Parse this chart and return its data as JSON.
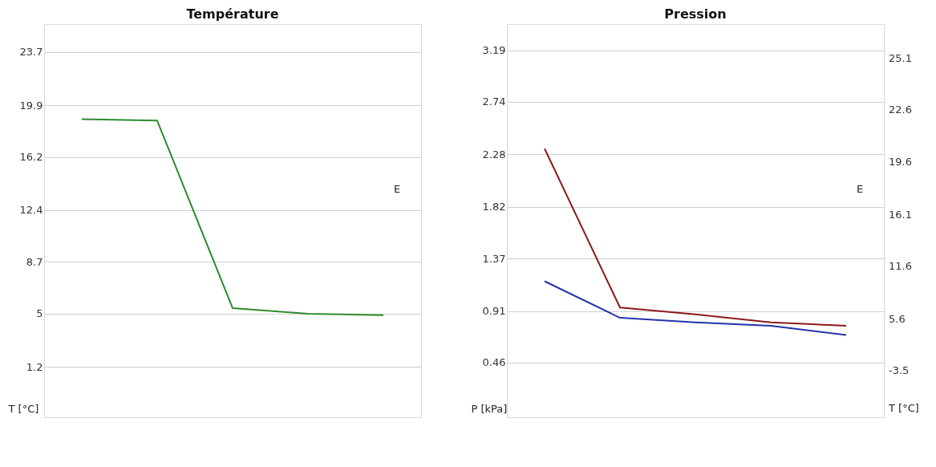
{
  "chart_data": [
    {
      "type": "line",
      "title": "Température",
      "ylabel": "T [°C]",
      "categories": [
        null,
        null,
        null,
        null,
        null
      ],
      "ylim": [
        -2.4,
        25.7
      ],
      "yticks": [
        1.2,
        5,
        8.7,
        12.4,
        16.2,
        19.9,
        23.7
      ],
      "grid": "y",
      "tick_labels": "y",
      "marker": "none",
      "annotations": [
        "E"
      ],
      "series": [
        {
          "color": "#2e8b2e",
          "values": [
            18.9,
            18.8,
            5.4,
            5.0,
            4.9
          ]
        }
      ]
    },
    {
      "type": "line",
      "title": "Pression",
      "ylabel": "P [kPa]",
      "y2label": "T [°C]",
      "categories": [
        null,
        null,
        null,
        null,
        null
      ],
      "ylim": [
        -0.02,
        3.42
      ],
      "yticks": [
        0.46,
        0.91,
        1.37,
        1.82,
        2.28,
        2.74,
        3.19
      ],
      "grid": "y",
      "tick_labels": "y",
      "marker": "none",
      "annotations": [
        "E",
        "-3.5",
        "5.6",
        "11.6",
        "16.1",
        "19.6",
        "22.6",
        "25.1"
      ],
      "series": [
        {
          "color": "#8b1a1a",
          "values": [
            2.33,
            0.94,
            0.88,
            0.81,
            0.78
          ]
        },
        {
          "color": "#2233aa",
          "values": [
            1.17,
            0.85,
            0.81,
            0.78,
            0.7
          ]
        }
      ]
    }
  ]
}
